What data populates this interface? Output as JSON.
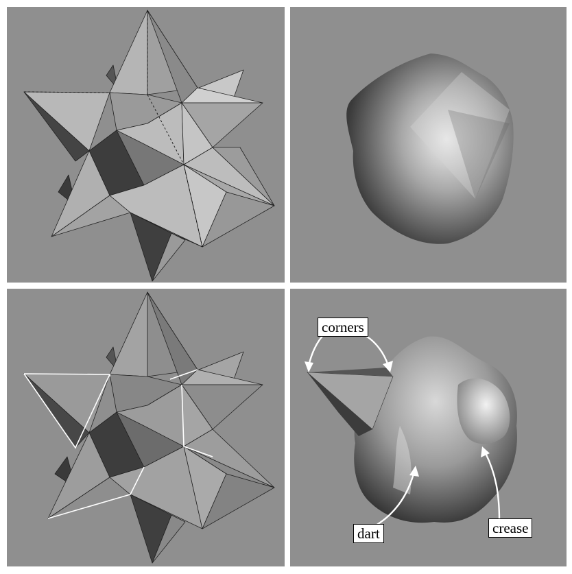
{
  "annotations": {
    "corners": "corners",
    "dart": "dart",
    "crease": "crease"
  },
  "colors": {
    "background": "#8f8f8f",
    "separator": "#ffffff",
    "label_box": "#ffffff"
  }
}
